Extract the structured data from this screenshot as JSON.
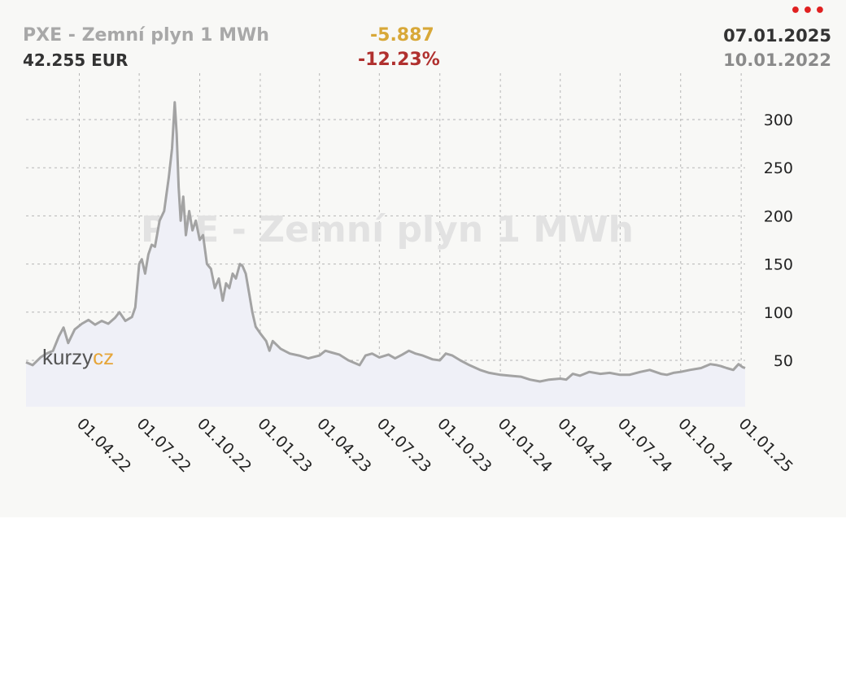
{
  "header": {
    "title": "PXE - Zemní plyn 1 MWh",
    "price": "42.255 EUR",
    "change_abs": "-5.887",
    "change_pct": "-12.23%",
    "date_end": "07.01.2025",
    "date_start": "10.01.2022",
    "menu_icon": "more-dots-icon"
  },
  "watermark": {
    "text": "PXE - Zemní plyn 1 MWh",
    "logo_a": "kurzy",
    "logo_b": "cz"
  },
  "colors": {
    "line": "#a3a3a3",
    "area": "#eff0f7",
    "grid": "#b5b5b5",
    "title": "#a8a8a8",
    "change_abs": "#d8a838",
    "change_pct": "#b0302e",
    "menu": "#e02020",
    "logo_dark": "#555555",
    "logo_accent": "#e6a63a"
  },
  "chart_data": {
    "type": "area",
    "title": "PXE - Zemní plyn 1 MWh",
    "unit": "EUR",
    "xlim": [
      "2022-01-10",
      "2025-01-07"
    ],
    "ylim": [
      0,
      330
    ],
    "y_ticks": [
      50,
      100,
      150,
      200,
      250,
      300
    ],
    "y_axis_side": "right",
    "x_ticks": [
      {
        "date": "2022-04-01",
        "label": "01.04.22"
      },
      {
        "date": "2022-07-01",
        "label": "01.07.22"
      },
      {
        "date": "2022-10-01",
        "label": "01.10.22"
      },
      {
        "date": "2023-01-01",
        "label": "01.01.23"
      },
      {
        "date": "2023-04-01",
        "label": "01.04.23"
      },
      {
        "date": "2023-07-01",
        "label": "01.07.23"
      },
      {
        "date": "2023-10-01",
        "label": "01.10.23"
      },
      {
        "date": "2024-01-01",
        "label": "01.01.24"
      },
      {
        "date": "2024-04-01",
        "label": "01.04.24"
      },
      {
        "date": "2024-07-01",
        "label": "01.07.24"
      },
      {
        "date": "2024-10-01",
        "label": "01.10.24"
      },
      {
        "date": "2025-01-01",
        "label": "01.01.25"
      }
    ],
    "grid": true,
    "series": [
      {
        "points": [
          [
            "2022-01-10",
            48
          ],
          [
            "2022-01-20",
            45
          ],
          [
            "2022-02-01",
            53
          ],
          [
            "2022-02-10",
            57
          ],
          [
            "2022-02-20",
            60
          ],
          [
            "2022-03-01",
            75
          ],
          [
            "2022-03-08",
            84
          ],
          [
            "2022-03-15",
            68
          ],
          [
            "2022-03-25",
            82
          ],
          [
            "2022-04-05",
            88
          ],
          [
            "2022-04-15",
            92
          ],
          [
            "2022-04-25",
            87
          ],
          [
            "2022-05-05",
            91
          ],
          [
            "2022-05-15",
            88
          ],
          [
            "2022-05-25",
            94
          ],
          [
            "2022-06-01",
            100
          ],
          [
            "2022-06-10",
            91
          ],
          [
            "2022-06-20",
            95
          ],
          [
            "2022-06-25",
            105
          ],
          [
            "2022-07-01",
            150
          ],
          [
            "2022-07-05",
            155
          ],
          [
            "2022-07-10",
            140
          ],
          [
            "2022-07-15",
            160
          ],
          [
            "2022-07-20",
            170
          ],
          [
            "2022-07-25",
            168
          ],
          [
            "2022-08-01",
            195
          ],
          [
            "2022-08-08",
            205
          ],
          [
            "2022-08-15",
            240
          ],
          [
            "2022-08-20",
            270
          ],
          [
            "2022-08-24",
            318
          ],
          [
            "2022-08-27",
            285
          ],
          [
            "2022-08-30",
            230
          ],
          [
            "2022-09-02",
            195
          ],
          [
            "2022-09-06",
            220
          ],
          [
            "2022-09-10",
            180
          ],
          [
            "2022-09-15",
            205
          ],
          [
            "2022-09-20",
            185
          ],
          [
            "2022-09-25",
            195
          ],
          [
            "2022-10-01",
            175
          ],
          [
            "2022-10-06",
            180
          ],
          [
            "2022-10-12",
            150
          ],
          [
            "2022-10-18",
            145
          ],
          [
            "2022-10-24",
            125
          ],
          [
            "2022-10-30",
            135
          ],
          [
            "2022-11-05",
            112
          ],
          [
            "2022-11-10",
            130
          ],
          [
            "2022-11-15",
            125
          ],
          [
            "2022-11-20",
            140
          ],
          [
            "2022-11-25",
            135
          ],
          [
            "2022-12-01",
            150
          ],
          [
            "2022-12-05",
            148
          ],
          [
            "2022-12-10",
            140
          ],
          [
            "2022-12-15",
            120
          ],
          [
            "2022-12-20",
            100
          ],
          [
            "2022-12-25",
            85
          ],
          [
            "2023-01-01",
            78
          ],
          [
            "2023-01-10",
            70
          ],
          [
            "2023-01-15",
            60
          ],
          [
            "2023-01-20",
            70
          ],
          [
            "2023-02-01",
            62
          ],
          [
            "2023-02-15",
            57
          ],
          [
            "2023-03-01",
            55
          ],
          [
            "2023-03-15",
            52
          ],
          [
            "2023-04-01",
            55
          ],
          [
            "2023-04-10",
            60
          ],
          [
            "2023-04-20",
            58
          ],
          [
            "2023-05-01",
            56
          ],
          [
            "2023-05-15",
            50
          ],
          [
            "2023-06-01",
            45
          ],
          [
            "2023-06-10",
            55
          ],
          [
            "2023-06-20",
            57
          ],
          [
            "2023-07-01",
            53
          ],
          [
            "2023-07-15",
            56
          ],
          [
            "2023-07-25",
            52
          ],
          [
            "2023-08-05",
            56
          ],
          [
            "2023-08-15",
            60
          ],
          [
            "2023-08-25",
            57
          ],
          [
            "2023-09-05",
            55
          ],
          [
            "2023-09-20",
            51
          ],
          [
            "2023-10-01",
            50
          ],
          [
            "2023-10-10",
            57
          ],
          [
            "2023-10-20",
            55
          ],
          [
            "2023-11-01",
            50
          ],
          [
            "2023-11-15",
            45
          ],
          [
            "2023-12-01",
            40
          ],
          [
            "2023-12-15",
            37
          ],
          [
            "2024-01-01",
            35
          ],
          [
            "2024-01-15",
            34
          ],
          [
            "2024-02-01",
            33
          ],
          [
            "2024-02-15",
            30
          ],
          [
            "2024-03-01",
            28
          ],
          [
            "2024-03-15",
            30
          ],
          [
            "2024-04-01",
            31
          ],
          [
            "2024-04-10",
            30
          ],
          [
            "2024-04-20",
            36
          ],
          [
            "2024-05-01",
            34
          ],
          [
            "2024-05-15",
            38
          ],
          [
            "2024-06-01",
            36
          ],
          [
            "2024-06-15",
            37
          ],
          [
            "2024-07-01",
            35
          ],
          [
            "2024-07-15",
            35
          ],
          [
            "2024-08-01",
            38
          ],
          [
            "2024-08-15",
            40
          ],
          [
            "2024-09-01",
            36
          ],
          [
            "2024-09-10",
            35
          ],
          [
            "2024-09-20",
            37
          ],
          [
            "2024-10-01",
            38
          ],
          [
            "2024-10-15",
            40
          ],
          [
            "2024-11-01",
            42
          ],
          [
            "2024-11-15",
            46
          ],
          [
            "2024-11-25",
            45
          ],
          [
            "2024-12-01",
            44
          ],
          [
            "2024-12-10",
            42
          ],
          [
            "2024-12-20",
            40
          ],
          [
            "2024-12-28",
            46
          ],
          [
            "2025-01-03",
            43
          ],
          [
            "2025-01-07",
            42
          ]
        ]
      }
    ]
  }
}
